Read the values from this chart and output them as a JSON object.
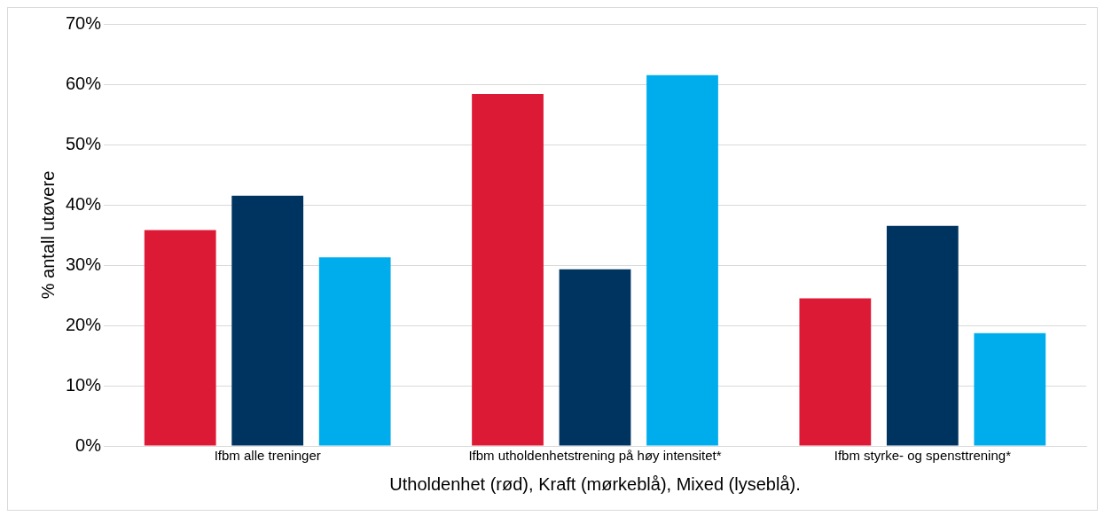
{
  "chart_data": {
    "type": "bar",
    "categories": [
      "Ifbm alle treninger",
      "Ifbm utholdenhetstrening på høy intensitet*",
      "Ifbm styrke- og spensttrening*"
    ],
    "series": [
      {
        "color": "#dd1a35",
        "values": [
          35.8,
          58.4,
          24.5
        ]
      },
      {
        "color": "#003460",
        "values": [
          41.5,
          29.3,
          36.5
        ]
      },
      {
        "color": "#00adec",
        "values": [
          31.3,
          61.5,
          18.7
        ]
      }
    ],
    "xlabel": "Utholdenhet (rød), Kraft (mørkeblå), Mixed (lyseblå).",
    "ylabel": "% antall utøvere",
    "ylim": [
      0,
      70
    ],
    "yticks": [
      {
        "value": 0,
        "label": "0%"
      },
      {
        "value": 10,
        "label": "10%"
      },
      {
        "value": 20,
        "label": "20%"
      },
      {
        "value": 30,
        "label": "30%"
      },
      {
        "value": 40,
        "label": "40%"
      },
      {
        "value": 50,
        "label": "50%"
      },
      {
        "value": 60,
        "label": "60%"
      },
      {
        "value": 70,
        "label": "70%"
      }
    ],
    "grid": "y",
    "legend": false
  }
}
